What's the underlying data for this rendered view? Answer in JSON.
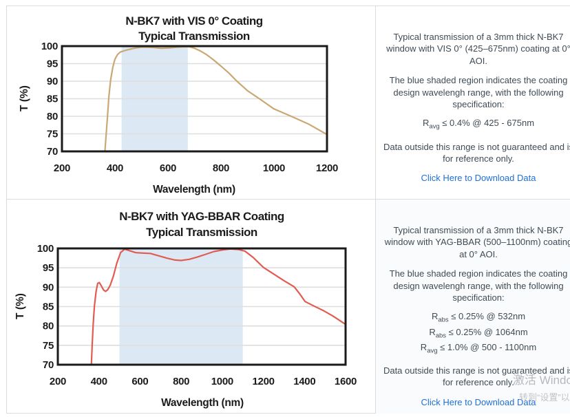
{
  "panels": {
    "top_right": {
      "para1": "Typical transmission of a 3mm thick N-BK7 window with VIS 0° (425–675nm) coating at 0° AOI.",
      "para2": "The blue shaded region indicates the coating design wavelengh range, with the following specification:",
      "specs": [
        {
          "base": "R",
          "sub": "avg",
          "rest": " ≤ 0.4% @ 425 - 675nm"
        }
      ],
      "para3": "Data outside this range is not guaranteed and is for reference only.",
      "link": "Click Here to Download Data"
    },
    "bottom_right": {
      "para1": "Typical transmission of a 3mm thick N-BK7 window with YAG-BBAR (500–1100nm) coating at 0° AOI.",
      "para2": "The blue shaded region indicates the coating design wavelengh range, with the following specification:",
      "specs": [
        {
          "base": "R",
          "sub": "abs",
          "rest": " ≤ 0.25% @ 532nm"
        },
        {
          "base": "R",
          "sub": "abs",
          "rest": " ≤ 0.25% @ 1064nm"
        },
        {
          "base": "R",
          "sub": "avg",
          "rest": " ≤ 1.0% @ 500 - 1100nm"
        }
      ],
      "para3": "Data outside this range is not guaranteed and is for reference only.",
      "link": "Click Here to Download Data"
    }
  },
  "watermark": {
    "line1": "激活 Windows",
    "line2": "转到“设置”以激活 Windows"
  },
  "chart_data": [
    {
      "type": "line",
      "title_line1": "N-BK7 with VIS 0° Coating",
      "title_line2": "Typical Transmission",
      "xlabel": "Wavelength (nm)",
      "ylabel": "T (%)",
      "xlim": [
        200,
        1200
      ],
      "ylim": [
        70,
        100
      ],
      "xticks": [
        200,
        400,
        600,
        800,
        1000,
        1200
      ],
      "yticks": [
        70,
        75,
        80,
        85,
        90,
        95,
        100
      ],
      "grid": true,
      "shaded_region_nm": [
        425,
        675
      ],
      "shade_color": "#dce9f5",
      "line_color": "#c9a874",
      "series": [
        {
          "name": "Transmission",
          "x": [
            362,
            366,
            371,
            377,
            384,
            392,
            400,
            410,
            420,
            432,
            446,
            462,
            480,
            500,
            520,
            545,
            575,
            605,
            635,
            660,
            680,
            700,
            720,
            745,
            770,
            800,
            830,
            860,
            900,
            945,
            1000,
            1065,
            1130,
            1200
          ],
          "y": [
            70,
            74,
            79,
            85.5,
            90.5,
            94,
            96.3,
            97.6,
            98.3,
            98.6,
            98.9,
            99.2,
            99.5,
            99.7,
            99.7,
            99.6,
            99.4,
            99.5,
            99.7,
            99.8,
            99.8,
            99.4,
            98.7,
            97.6,
            96.2,
            94.3,
            92.3,
            90,
            87.3,
            85,
            82.1,
            80,
            77.8,
            74.8
          ]
        }
      ]
    },
    {
      "type": "line",
      "title_line1": "N-BK7 with YAG-BBAR Coating",
      "title_line2": "Typical Transmission",
      "xlabel": "Wavelength (nm)",
      "ylabel": "T (%)",
      "xlim": [
        200,
        1600
      ],
      "ylim": [
        70,
        100
      ],
      "xticks": [
        200,
        400,
        600,
        800,
        1000,
        1200,
        1400,
        1600
      ],
      "yticks": [
        70,
        75,
        80,
        85,
        90,
        95,
        100
      ],
      "grid": true,
      "shaded_region_nm": [
        500,
        1100
      ],
      "shade_color": "#dce9f5",
      "line_color": "#e25b50",
      "series": [
        {
          "name": "Transmission",
          "x": [
            363,
            367,
            372,
            378,
            386,
            394,
            402,
            412,
            422,
            432,
            442,
            455,
            470,
            487,
            505,
            525,
            550,
            580,
            615,
            650,
            690,
            730,
            770,
            800,
            840,
            880,
            920,
            960,
            1000,
            1040,
            1080,
            1110,
            1150,
            1200,
            1250,
            1300,
            1350,
            1375,
            1403,
            1440,
            1490,
            1540,
            1600
          ],
          "y": [
            70,
            75,
            80.5,
            85,
            88.8,
            91.0,
            91.2,
            90.3,
            89.3,
            88.9,
            89.3,
            90.5,
            92.8,
            96.2,
            98.9,
            99.8,
            99.4,
            98.9,
            98.8,
            98.7,
            98.1,
            97.5,
            97.0,
            96.9,
            97.2,
            97.8,
            98.5,
            99.2,
            99.6,
            99.85,
            99.7,
            99.3,
            97.7,
            95.1,
            93.4,
            91.7,
            90.1,
            88.4,
            86.3,
            85.3,
            84.0,
            82.5,
            80.4
          ]
        }
      ]
    }
  ]
}
